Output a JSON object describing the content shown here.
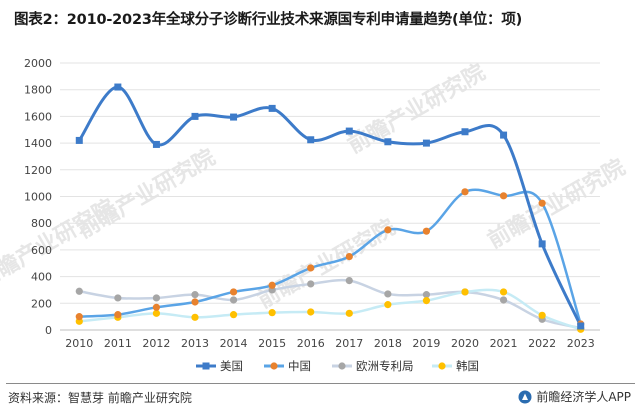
{
  "title": "图表2：2010-2023年全球分子诊断行业技术来源国专利申请量趋势(单位：项)",
  "footer": {
    "source": "资料来源：智慧芽 前瞻产业研究院",
    "brand": "前瞻经济学人APP"
  },
  "watermark": "前瞻产业研究院",
  "chart_data": {
    "type": "line",
    "title": "图表2：2010-2023年全球分子诊断行业技术来源国专利申请量趋势(单位：项)",
    "xlabel": "",
    "ylabel": "",
    "x": [
      "2010",
      "2011",
      "2012",
      "2013",
      "2014",
      "2015",
      "2016",
      "2017",
      "2018",
      "2019",
      "2020",
      "2021",
      "2022",
      "2023"
    ],
    "ylim": [
      0,
      2000
    ],
    "yticks": [
      0,
      200,
      400,
      600,
      800,
      1000,
      1200,
      1400,
      1600,
      1800,
      2000
    ],
    "grid": true,
    "legend": "bottom",
    "series": [
      {
        "name": "美国",
        "color": "#3d7bc9",
        "marker": "square",
        "values": [
          1420,
          1820,
          1390,
          1600,
          1595,
          1660,
          1425,
          1490,
          1410,
          1400,
          1485,
          1460,
          645,
          30
        ]
      },
      {
        "name": "中国",
        "color": "#e8822e",
        "lineColor": "#5aa4e6",
        "marker": "circle",
        "values": [
          100,
          115,
          170,
          210,
          285,
          335,
          465,
          550,
          750,
          740,
          1035,
          1005,
          950,
          45
        ]
      },
      {
        "name": "欧洲专利局",
        "color": "#a6a6a6",
        "lineColor": "#c8d3e3",
        "marker": "circle",
        "values": [
          290,
          240,
          240,
          265,
          225,
          300,
          345,
          370,
          270,
          265,
          285,
          225,
          80,
          15
        ]
      },
      {
        "name": "韩国",
        "color": "#ffc000",
        "lineColor": "#c6ebf5",
        "marker": "circle",
        "values": [
          65,
          95,
          125,
          95,
          115,
          130,
          135,
          125,
          190,
          220,
          285,
          285,
          110,
          5
        ]
      }
    ]
  }
}
